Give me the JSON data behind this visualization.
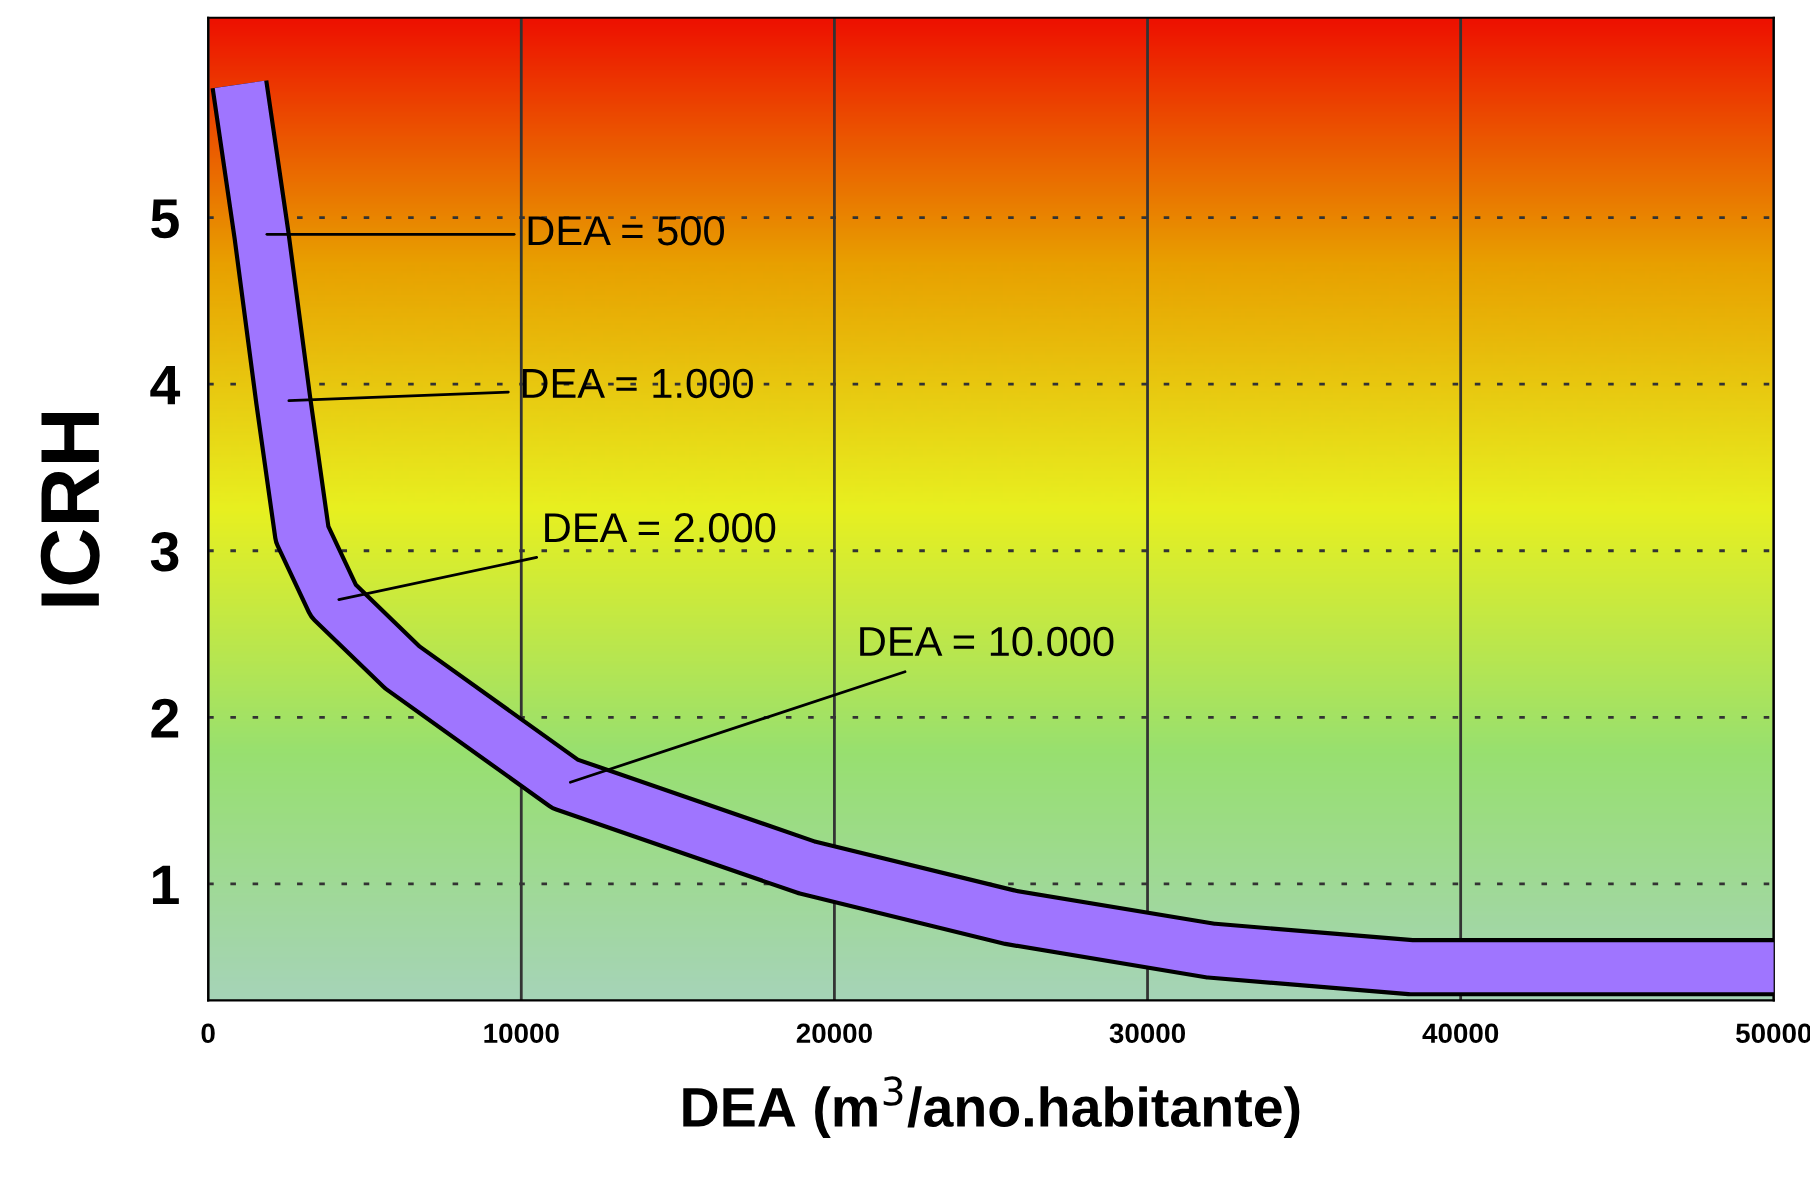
{
  "chart_data": {
    "type": "line",
    "xlabel": "DEA (m$^{3}$/ano.habitante)",
    "ylabel": "ICRH",
    "series": [
      {
        "color": "#9f75ff",
        "x": [
          1000,
          1700,
          2400,
          3000,
          4000,
          6200,
          11400,
          19100,
          25600,
          32000,
          38400,
          50000
        ],
        "values": [
          5.8,
          4.9,
          3.9,
          3.1,
          2.7,
          2.3,
          1.6,
          1.1,
          0.8,
          0.6,
          0.5,
          0.5
        ]
      }
    ],
    "xlim": [
      0,
      50000
    ],
    "xticks": [
      0,
      10000,
      20000,
      30000,
      40000,
      50000
    ],
    "ylim": [
      0.3,
      6.2
    ],
    "yticks": [
      1,
      2,
      3,
      4,
      5
    ],
    "grid": true,
    "marker": "none",
    "line_style": "solid",
    "annotations": [
      {
        "text": "DEA = 500",
        "x": 1700,
        "y": 4.9
      },
      {
        "text": "DEA = 1.000",
        "x": 2400,
        "y": 3.9
      },
      {
        "text": "DEA = 2.000",
        "x": 4000,
        "y": 2.7
      },
      {
        "text": "DEA = 10.000",
        "x": 11400,
        "y": 1.6
      }
    ]
  }
}
